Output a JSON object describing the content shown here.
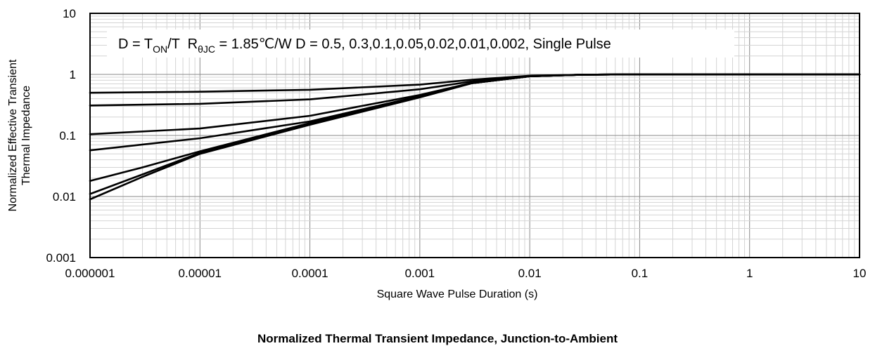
{
  "chart_data": {
    "type": "line",
    "title": "Normalized Thermal Transient Impedance, Junction-to-Ambient",
    "xlabel": "Square Wave Pulse Duration (s)",
    "ylabel_line1": "Normalized Effective Transient",
    "ylabel_line2": "Thermal Impedance",
    "x_scale": "log",
    "y_scale": "log",
    "xlim": [
      1e-06,
      10
    ],
    "ylim": [
      0.001,
      10
    ],
    "grid": true,
    "x_tick_labels": [
      "0.000001",
      "0.00001",
      "0.0001",
      "0.001",
      "0.01",
      "0.1",
      "1",
      "10"
    ],
    "y_tick_labels": [
      "10",
      "1",
      "0.1",
      "0.01",
      "0.001"
    ],
    "annotation": {
      "prefix": "D = T",
      "sub1": "ON",
      "mid": "/T  R",
      "sub2": "θJC",
      "suffix": " = 1.85℃/W D = 0.5, 0.3,0.1,0.05,0.02,0.01,0.002, Single Pulse"
    },
    "series": [
      {
        "x": [
          1e-06,
          1e-05,
          0.0001,
          0.001,
          0.003,
          0.01,
          0.03,
          0.1,
          1,
          10
        ],
        "y": [
          0.5,
          0.52,
          0.56,
          0.68,
          0.82,
          0.95,
          0.99,
          1.0,
          1.0,
          1.0
        ]
      },
      {
        "x": [
          1e-06,
          1e-05,
          0.0001,
          0.001,
          0.003,
          0.01,
          0.03,
          0.1,
          1,
          10
        ],
        "y": [
          0.31,
          0.33,
          0.39,
          0.57,
          0.77,
          0.94,
          0.99,
          1.0,
          1.0,
          1.0
        ]
      },
      {
        "x": [
          1e-06,
          1e-05,
          0.0001,
          0.001,
          0.003,
          0.01,
          0.03,
          0.1,
          1,
          10
        ],
        "y": [
          0.105,
          0.13,
          0.21,
          0.46,
          0.73,
          0.93,
          0.99,
          1.0,
          1.0,
          1.0
        ]
      },
      {
        "x": [
          1e-06,
          1e-05,
          0.0001,
          0.001,
          0.003,
          0.01,
          0.03,
          0.1,
          1,
          10
        ],
        "y": [
          0.057,
          0.09,
          0.17,
          0.44,
          0.72,
          0.93,
          0.99,
          1.0,
          1.0,
          1.0
        ]
      },
      {
        "x": [
          1e-06,
          3e-06,
          1e-05,
          0.0001,
          0.001,
          0.003,
          0.01,
          0.03,
          0.1,
          1,
          10
        ],
        "y": [
          0.018,
          0.03,
          0.055,
          0.16,
          0.43,
          0.72,
          0.93,
          0.99,
          1.0,
          1.0,
          1.0
        ]
      },
      {
        "x": [
          1e-06,
          3e-06,
          1e-05,
          0.0001,
          0.001,
          0.003,
          0.01,
          0.03,
          0.1,
          1,
          10
        ],
        "y": [
          0.011,
          0.023,
          0.052,
          0.155,
          0.43,
          0.72,
          0.93,
          0.99,
          1.0,
          1.0,
          1.0
        ]
      },
      {
        "x": [
          1e-06,
          3e-06,
          1e-05,
          0.0001,
          0.001,
          0.003,
          0.01,
          0.03,
          0.1,
          1,
          10
        ],
        "y": [
          0.009,
          0.021,
          0.05,
          0.15,
          0.42,
          0.72,
          0.93,
          0.99,
          1.0,
          1.0,
          1.0
        ]
      }
    ]
  }
}
